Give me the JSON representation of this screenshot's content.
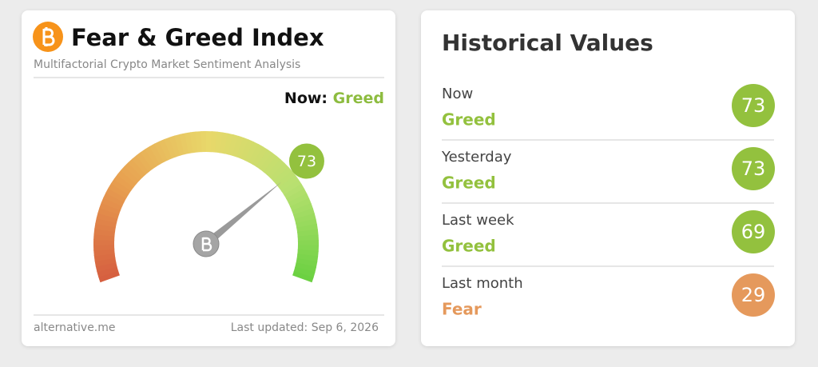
{
  "left_card": {
    "title": "Fear & Greed Index",
    "subtitle": "Multifactorial Crypto Market Sentiment Analysis",
    "now_label": "Now:",
    "now_class": "Greed",
    "now_color": "#8dbc3f",
    "value": 73,
    "value_color": "#93c13e",
    "gauge_range": [
      0,
      100
    ],
    "footer_left": "alternative.me",
    "footer_right": "Last updated: Sep 6, 2026"
  },
  "right_card": {
    "title": "Historical Values",
    "rows": [
      {
        "period": "Now",
        "class": "Greed",
        "value": 73,
        "color": "#93c13e"
      },
      {
        "period": "Yesterday",
        "class": "Greed",
        "value": 73,
        "color": "#93c13e"
      },
      {
        "period": "Last week",
        "class": "Greed",
        "value": 69,
        "color": "#93c13e"
      },
      {
        "period": "Last month",
        "class": "Fear",
        "value": 29,
        "color": "#e5995c"
      }
    ]
  }
}
